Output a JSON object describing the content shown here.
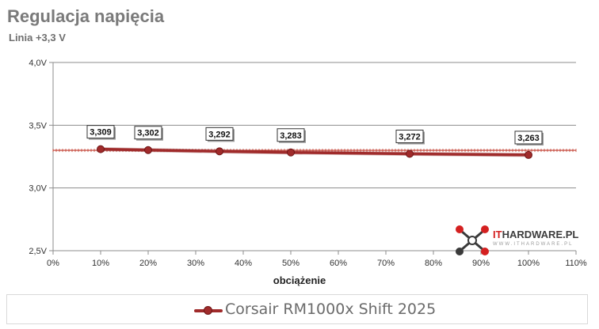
{
  "title": "Regulacja napięcia",
  "subtitle": "Linia +3,3 V",
  "logo": {
    "brand_prefix": "IT",
    "brand_suffix": "HARDWARE.PL",
    "small_text": "WWW.ITHARDWARE.PL"
  },
  "chart_data": {
    "type": "line",
    "title": "Regulacja napięcia",
    "subtitle": "Linia +3,3 V",
    "xlabel": "obciążenie",
    "ylabel": "",
    "xlim": [
      0,
      110
    ],
    "ylim": [
      2.5,
      4.0
    ],
    "x_ticks": [
      0,
      10,
      20,
      30,
      40,
      50,
      60,
      70,
      80,
      90,
      100,
      110
    ],
    "x_tick_labels": [
      "0%",
      "10%",
      "20%",
      "30%",
      "40%",
      "50%",
      "60%",
      "70%",
      "80%",
      "90%",
      "100%",
      "110%"
    ],
    "y_ticks": [
      2.5,
      3.0,
      3.5,
      4.0
    ],
    "y_tick_labels": [
      "2,5V",
      "3,0V",
      "3,5V",
      "4,0V"
    ],
    "reference_line": 3.3,
    "grid": true,
    "legend_position": "bottom",
    "series": [
      {
        "name": "Corsair RM1000x Shift 2025",
        "color": "#a02b2b",
        "x": [
          10,
          20,
          35,
          50,
          75,
          100
        ],
        "y": [
          3.309,
          3.302,
          3.292,
          3.283,
          3.272,
          3.263
        ],
        "labels": [
          "3,309",
          "3,302",
          "3,292",
          "3,283",
          "3,272",
          "3,263"
        ]
      }
    ]
  }
}
